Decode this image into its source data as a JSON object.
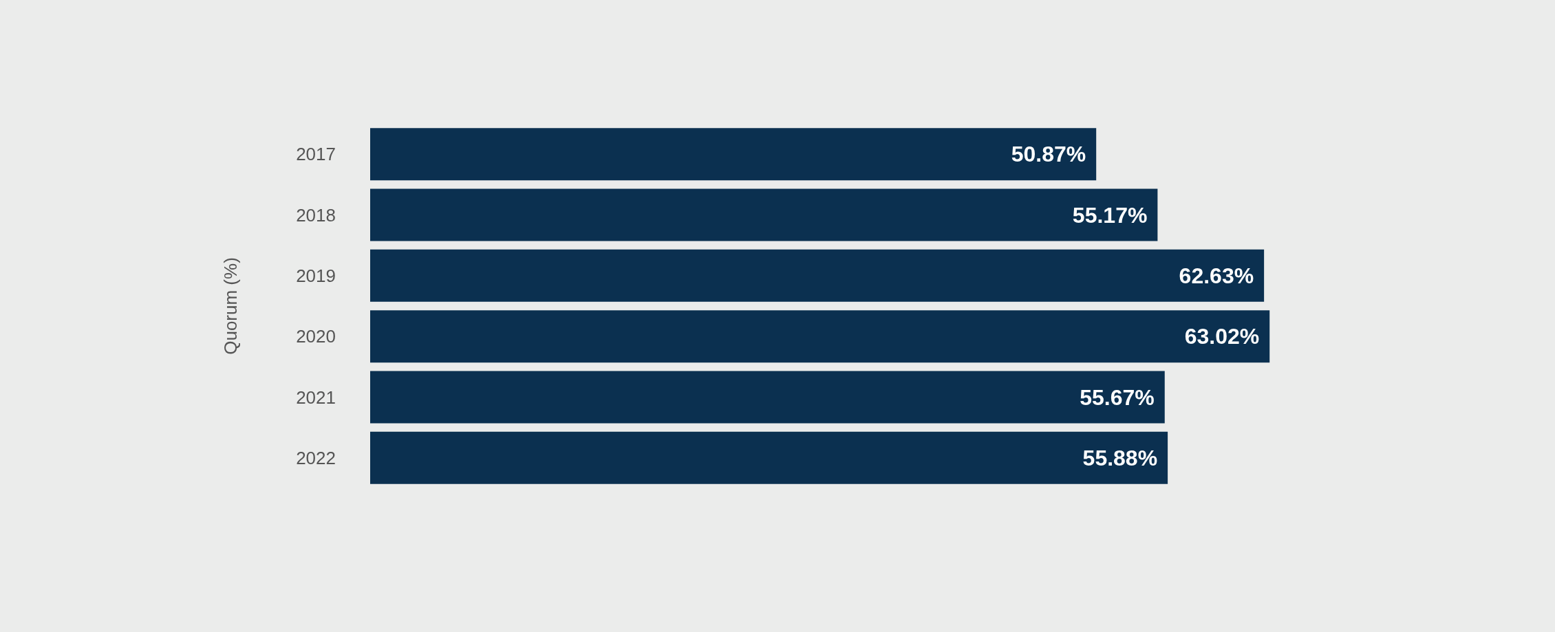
{
  "chart_data": {
    "type": "bar",
    "orientation": "horizontal",
    "ylabel": "Quorum (%)",
    "categories": [
      "2017",
      "2018",
      "2019",
      "2020",
      "2021",
      "2022"
    ],
    "series": [
      {
        "color": "#0b3050",
        "values": [
          50.87,
          55.17,
          62.63,
          63.02,
          55.67,
          55.88
        ],
        "value_labels": [
          "50.87%",
          "55.17%",
          "62.63%",
          "63.02%",
          "55.67%",
          "55.88%"
        ]
      }
    ],
    "grid": false
  }
}
